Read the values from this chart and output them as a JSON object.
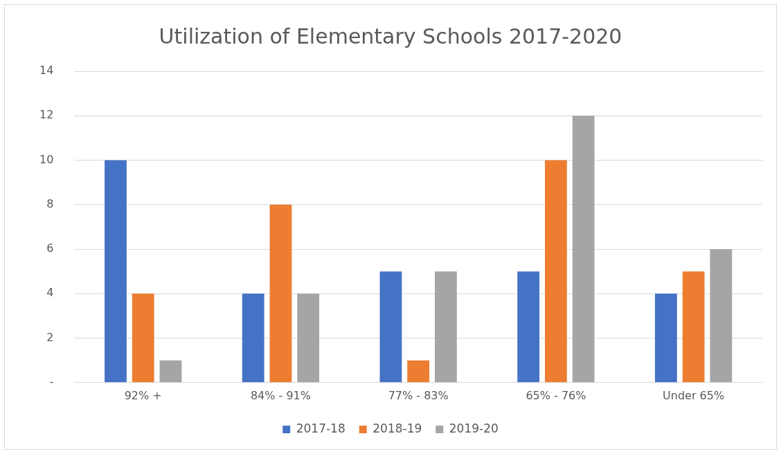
{
  "chart_data": {
    "type": "bar",
    "title": "Utilization of Elementary Schools 2017-2020",
    "categories": [
      "92% +",
      "84% - 91%",
      "77% - 83%",
      "65% - 76%",
      "Under 65%"
    ],
    "series": [
      {
        "name": "2017-18",
        "color": "#4472c4",
        "values": [
          10,
          4,
          5,
          5,
          4
        ]
      },
      {
        "name": "2018-19",
        "color": "#ed7d31",
        "values": [
          4,
          8,
          1,
          10,
          5
        ]
      },
      {
        "name": "2019-20",
        "color": "#a5a5a5",
        "values": [
          1,
          4,
          5,
          12,
          6
        ]
      }
    ],
    "ylim": [
      0,
      14
    ],
    "yticks": [
      {
        "value": 0,
        "label": "-"
      },
      2,
      4,
      6,
      8,
      10,
      12,
      14
    ],
    "grid": "y",
    "legend": "bottom"
  }
}
